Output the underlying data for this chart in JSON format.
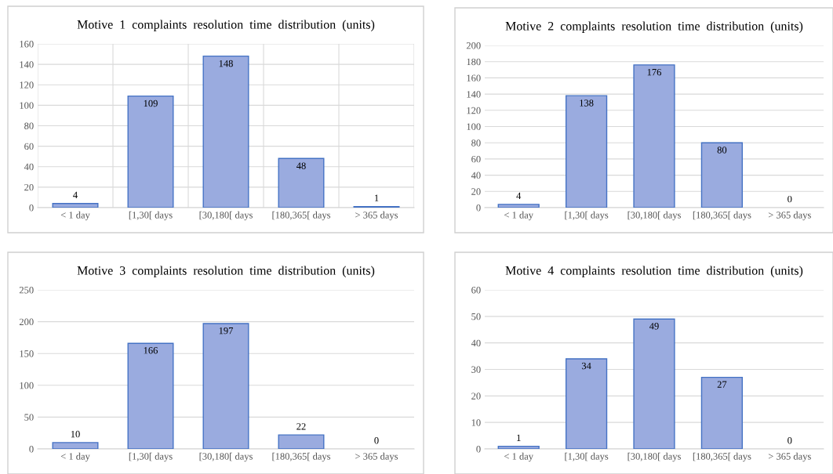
{
  "chart_data": [
    {
      "type": "bar",
      "title": "Motive  1  complaints  resolution  time  distribution  (units)",
      "categories": [
        "< 1 day",
        "[1,30[ days",
        "[30,180[ days",
        "[180,365[ days",
        "> 365 days"
      ],
      "values": [
        4,
        109,
        148,
        48,
        1
      ],
      "color": "#9aabdf",
      "ylim": [
        0,
        160
      ],
      "yticks": [
        0,
        20,
        40,
        60,
        80,
        100,
        120,
        140,
        160
      ],
      "grid": true,
      "data_labels": true
    },
    {
      "type": "bar",
      "title": "Motive  2  complaints  resolution  time  distribution  (units)",
      "categories": [
        "< 1 day",
        "[1,30[ days",
        "[30,180[ days",
        "[180,365[ days",
        "> 365 days"
      ],
      "values": [
        4,
        138,
        176,
        80,
        0
      ],
      "color": "#9aabdf",
      "ylim": [
        0,
        200
      ],
      "yticks": [
        0,
        20,
        40,
        60,
        80,
        100,
        120,
        140,
        160,
        180,
        200
      ],
      "grid": "y",
      "data_labels": true
    },
    {
      "type": "bar",
      "title": "Motive  3  complaints  resolution  time  distribution  (units)",
      "categories": [
        "< 1 day",
        "[1,30[ days",
        "[30,180[ days",
        "[180,365[ days",
        "> 365 days"
      ],
      "values": [
        10,
        166,
        197,
        22,
        0
      ],
      "color": "#9aabdf",
      "ylim": [
        0,
        250
      ],
      "yticks": [
        0,
        50,
        100,
        150,
        200,
        250
      ],
      "grid": "y",
      "data_labels": true
    },
    {
      "type": "bar",
      "title": "Motive  4  complaints  resolution  time  distribution  (units)",
      "categories": [
        "< 1 day",
        "[1,30[ days",
        "[30,180[ days",
        "[180,365[ days",
        "> 365 days"
      ],
      "values": [
        1,
        34,
        49,
        27,
        0
      ],
      "color": "#9aabdf",
      "ylim": [
        0,
        60
      ],
      "yticks": [
        0,
        10,
        20,
        30,
        40,
        50,
        60
      ],
      "grid": "y",
      "data_labels": true
    }
  ]
}
